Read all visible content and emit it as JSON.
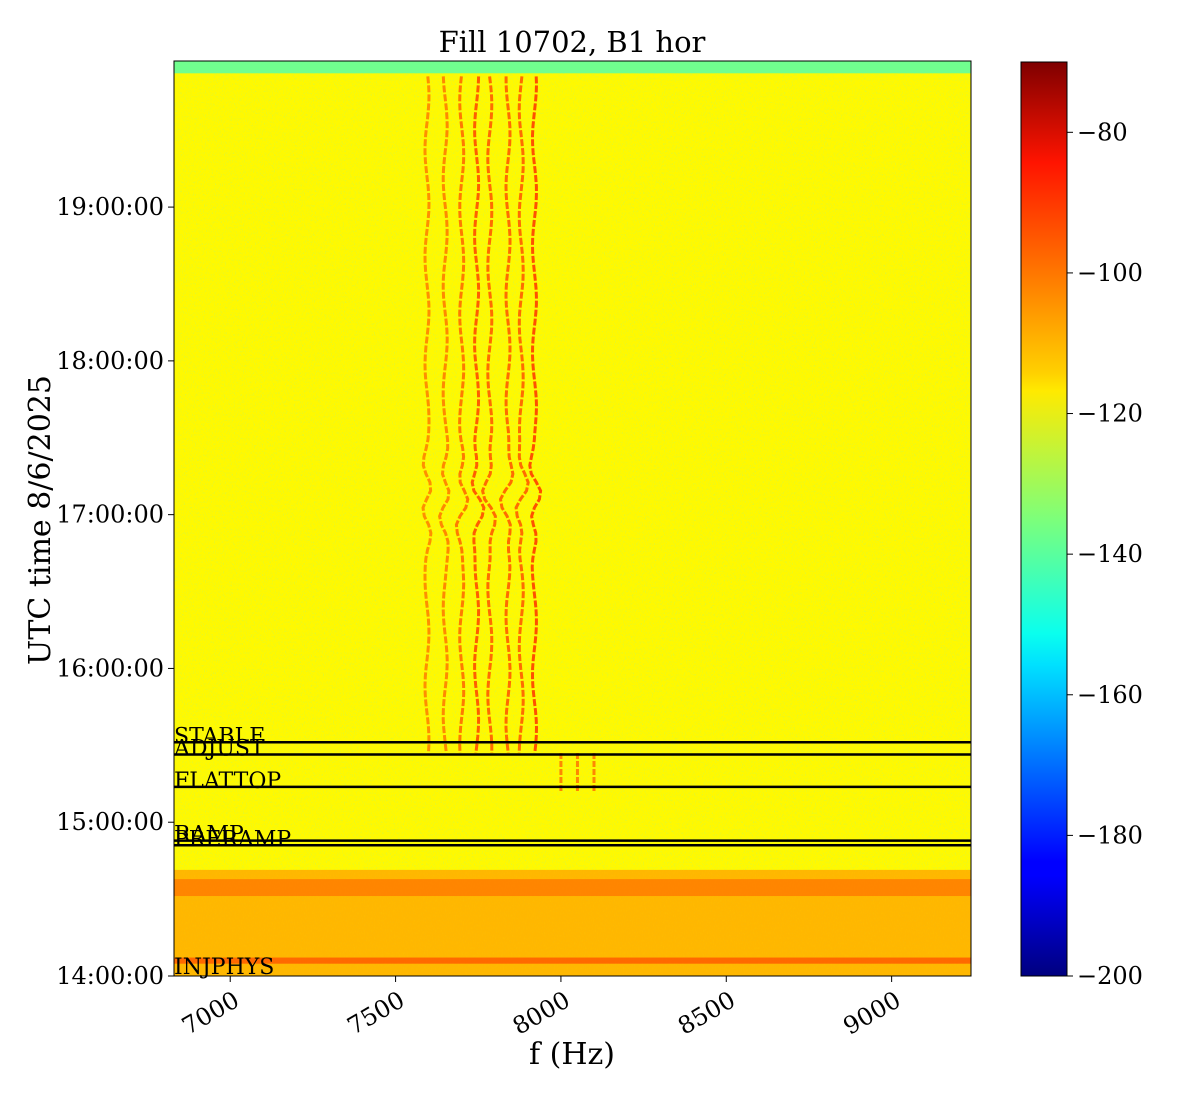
{
  "chart_data": {
    "type": "heatmap",
    "title": "Fill 10702, B1 hor",
    "xlabel": "f (Hz)",
    "ylabel": "UTC time 8/6/2025",
    "xlim": [
      6830,
      9240
    ],
    "xticks": [
      7000,
      7500,
      8000,
      8500,
      9000
    ],
    "x_tick_labels": [
      "7000",
      "7500",
      "8000",
      "8500",
      "9000"
    ],
    "ylim_hours": [
      14.0,
      19.95
    ],
    "yticks_hours": [
      14,
      15,
      16,
      17,
      18,
      19
    ],
    "y_tick_labels": [
      "14:00:00",
      "15:00:00",
      "16:00:00",
      "17:00:00",
      "18:00:00",
      "19:00:00"
    ],
    "colormap": "jet",
    "colorbar": {
      "range": [
        -200,
        -70
      ],
      "ticks": [
        -80,
        -100,
        -120,
        -140,
        -160,
        -180,
        -200
      ],
      "tick_labels": [
        "−80",
        "−100",
        "−120",
        "−140",
        "−160",
        "−180",
        "−200"
      ]
    },
    "background_level": -118,
    "bands": [
      {
        "from_hours": 19.87,
        "to_hours": 19.95,
        "level": -140
      },
      {
        "from_hours": 14.0,
        "to_hours": 14.69,
        "level": -108
      },
      {
        "from_hours": 14.52,
        "to_hours": 14.63,
        "level": -102
      },
      {
        "from_hours": 14.08,
        "to_hours": 14.12,
        "level": -98
      }
    ],
    "lines": [
      {
        "f": 7595,
        "level": -103
      },
      {
        "f": 7650,
        "level": -102
      },
      {
        "f": 7700,
        "level": -100
      },
      {
        "f": 7745,
        "level": -96
      },
      {
        "f": 7785,
        "level": -98
      },
      {
        "f": 7840,
        "level": -98
      },
      {
        "f": 7880,
        "level": -98
      },
      {
        "f": 7920,
        "level": -94
      }
    ],
    "beam_modes": [
      {
        "label": "STABLE",
        "time_hours": 15.52
      },
      {
        "label": "ADJUST",
        "time_hours": 15.44
      },
      {
        "label": "FLATTOP",
        "time_hours": 15.23
      },
      {
        "label": "RAMP",
        "time_hours": 14.88
      },
      {
        "label": "PRERAMP",
        "time_hours": 14.85
      },
      {
        "label": "INJPHYS",
        "time_hours": 14.02
      }
    ]
  }
}
